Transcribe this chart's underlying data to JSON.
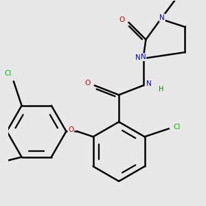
{
  "bg_color": "#e8e8e8",
  "atom_colors": {
    "C": "#000000",
    "N": "#0000cc",
    "O": "#cc0000",
    "Cl": "#00bb00",
    "F": "#cc00cc",
    "H": "#008800"
  },
  "bond_color": "#000000",
  "bond_width": 1.8,
  "figsize": [
    3.0,
    3.0
  ],
  "dpi": 100
}
